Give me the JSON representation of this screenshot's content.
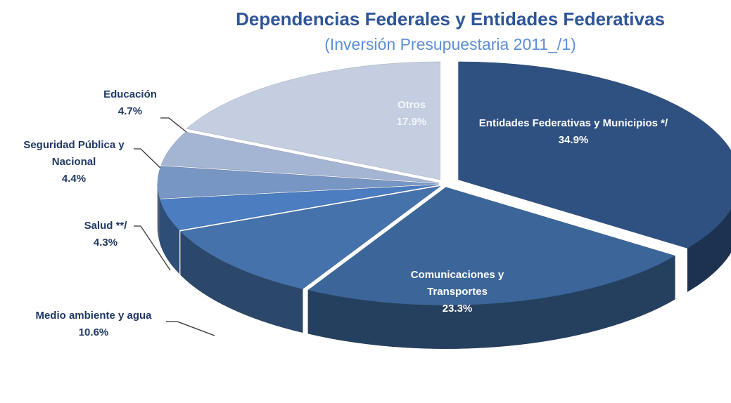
{
  "chart_data": {
    "type": "pie",
    "title": "Dependencias Federales y Entidades Federativas",
    "subtitle": "(Inversión Presupuestaria 2011_/1)",
    "categories": [
      "Entidades Federativas y Municipios */",
      "Comunicaciones y Transportes",
      "Medio ambiente y agua",
      "Salud **/",
      "Seguridad Pública y Nacional",
      "Educación",
      "Otros"
    ],
    "values": [
      34.9,
      23.3,
      10.6,
      4.3,
      4.4,
      4.7,
      17.9
    ],
    "value_labels": [
      "34.9%",
      "23.3%",
      "10.6%",
      "4.3%",
      "4.4%",
      "4.7%",
      "17.9%"
    ],
    "colors": [
      "#2f5181",
      "#3c6699",
      "#4572aa",
      "#4b7dc0",
      "#7896c4",
      "#a4b5d3",
      "#c4cee0"
    ]
  }
}
